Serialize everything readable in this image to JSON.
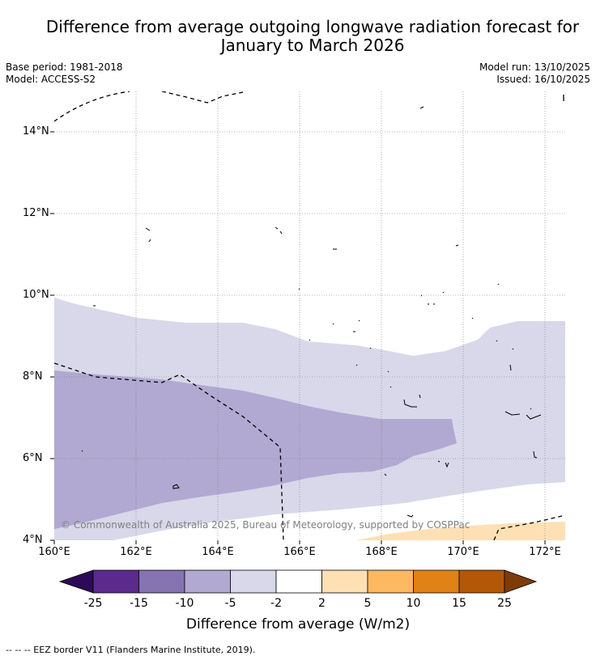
{
  "title_line1": "Difference from average outgoing longwave radiation forecast for",
  "title_line2": "January to March 2026",
  "base_period": "Base period: 1981-2018",
  "model": "Model: ACCESS-S2",
  "model_run": "Model run: 13/10/2025",
  "issued": "Issued: 16/10/2025",
  "lat_labels": [
    "14°N",
    "12°N",
    "10°N",
    "8°N",
    "6°N",
    "4°N"
  ],
  "lon_labels": [
    "160°E",
    "162°E",
    "164°E",
    "166°E",
    "168°E",
    "170°E",
    "172°E"
  ],
  "copyright": "© Commonwealth of Australia 2025, Bureau of Meteorology, supported by COSPPac",
  "colorbar": {
    "ticks": [
      "-25",
      "-15",
      "-10",
      "-5",
      "-2",
      "2",
      "5",
      "10",
      "15",
      "25"
    ],
    "colors": [
      "#2d0a57",
      "#5b2a8c",
      "#8574b1",
      "#b1a9d2",
      "#d8d8ea",
      "#ffffff",
      "#fee0b4",
      "#fdb862",
      "#e08216",
      "#b35806",
      "#7f3b08"
    ],
    "title": "Difference from average (W/m2)"
  },
  "footnote": "--  --  -- EEZ border V11 (Flanders Marine Institute, 2019)."
}
